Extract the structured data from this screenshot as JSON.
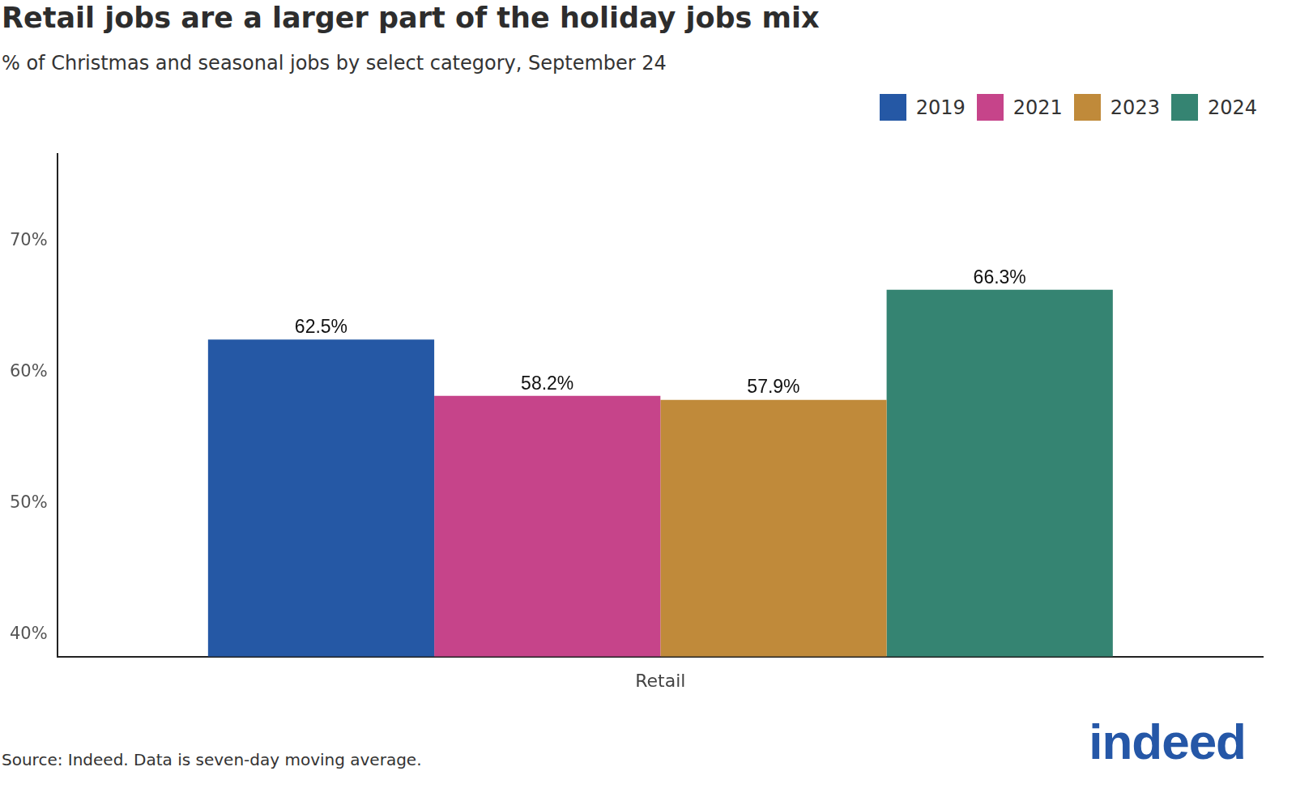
{
  "chart_data": {
    "type": "bar",
    "title": "Retail jobs are a larger part of the holiday jobs mix",
    "subtitle": "% of Christmas and seasonal jobs by select category, September 24",
    "categories": [
      "Retail"
    ],
    "series": [
      {
        "name": "2019",
        "color": "#2558a5",
        "values": [
          62.5
        ],
        "value_labels": [
          "62.5%"
        ]
      },
      {
        "name": "2021",
        "color": "#c6448a",
        "values": [
          58.2
        ],
        "value_labels": [
          "58.2%"
        ]
      },
      {
        "name": "2023",
        "color": "#c08a3a",
        "values": [
          57.9
        ],
        "value_labels": [
          "57.9%"
        ]
      },
      {
        "name": "2024",
        "color": "#358472",
        "values": [
          66.3
        ],
        "value_labels": [
          "66.3%"
        ]
      }
    ],
    "ylim": [
      38.3,
      76.7
    ],
    "yticks": [
      {
        "value": 40,
        "label": "40%"
      },
      {
        "value": 50,
        "label": "50%"
      },
      {
        "value": 60,
        "label": "60%"
      },
      {
        "value": 70,
        "label": "70%"
      }
    ],
    "grid": false,
    "legend": "top-right",
    "data_labels": true,
    "source": "Source: Indeed. Data is seven-day moving average.",
    "logo": "indeed"
  }
}
